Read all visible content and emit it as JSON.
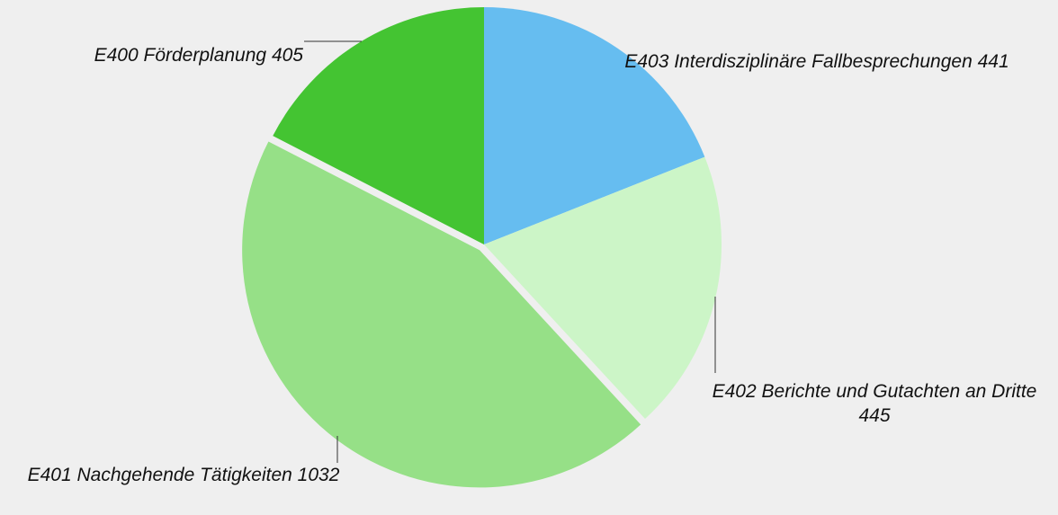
{
  "chart_data": {
    "type": "pie",
    "categories": [
      "E403 Interdisziplinäre Fallbesprechungen",
      "E402 Berichte und Gutachten an Dritte",
      "E401 Nachgehende Tätigkeiten",
      "E400 Förderplanung"
    ],
    "values": [
      441,
      445,
      1032,
      405
    ],
    "colors": [
      "#66bdf0",
      "#ccf5c7",
      "#96e087",
      "#44c432"
    ]
  }
}
